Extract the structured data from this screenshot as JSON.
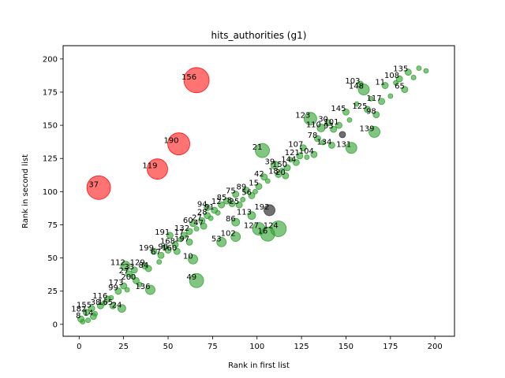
{
  "chart_data": {
    "type": "scatter",
    "title": "hits_authorities (g1)",
    "xlabel": "Rank in first list",
    "ylabel": "Rank in second list",
    "xlim": [
      -9,
      211
    ],
    "ylim": [
      -9,
      210
    ],
    "xticks": [
      0,
      25,
      50,
      75,
      100,
      125,
      150,
      175,
      200
    ],
    "yticks": [
      0,
      25,
      50,
      75,
      100,
      125,
      150,
      175,
      200
    ],
    "grid": false,
    "colors": {
      "match": "#2ca02c",
      "far": "#ff0000",
      "mid": "#333333"
    },
    "points": [
      {
        "label": "156",
        "x": 66,
        "y": 184,
        "size": 16,
        "category": "far"
      },
      {
        "label": "190",
        "x": 56,
        "y": 136,
        "size": 14,
        "category": "far"
      },
      {
        "label": "119",
        "x": 44,
        "y": 117,
        "size": 13,
        "category": "far"
      },
      {
        "label": "37",
        "x": 11,
        "y": 103,
        "size": 15,
        "category": "far"
      },
      {
        "label": "192",
        "x": 107,
        "y": 86,
        "size": 7,
        "category": "mid"
      },
      {
        "label": "",
        "x": 148,
        "y": 143,
        "size": 4,
        "category": "mid"
      },
      {
        "label": "148",
        "x": 160,
        "y": 177,
        "size": 7,
        "category": "match"
      },
      {
        "label": "123",
        "x": 130,
        "y": 155,
        "size": 8,
        "category": "match"
      },
      {
        "label": "139",
        "x": 166,
        "y": 145,
        "size": 7,
        "category": "match"
      },
      {
        "label": "21",
        "x": 103,
        "y": 131,
        "size": 9,
        "category": "match"
      },
      {
        "label": "131",
        "x": 153,
        "y": 133,
        "size": 7,
        "category": "match"
      },
      {
        "label": "127",
        "x": 101,
        "y": 72,
        "size": 8,
        "category": "match"
      },
      {
        "label": "124",
        "x": 112,
        "y": 72,
        "size": 10,
        "category": "match"
      },
      {
        "label": "16",
        "x": 106,
        "y": 68,
        "size": 9,
        "category": "match"
      },
      {
        "label": "102",
        "x": 88,
        "y": 66,
        "size": 6,
        "category": "match"
      },
      {
        "label": "53",
        "x": 80,
        "y": 62,
        "size": 6,
        "category": "match"
      },
      {
        "label": "113",
        "x": 97,
        "y": 82,
        "size": 5,
        "category": "match"
      },
      {
        "label": "86",
        "x": 88,
        "y": 77,
        "size": 5,
        "category": "match"
      },
      {
        "label": "49",
        "x": 66,
        "y": 33,
        "size": 9,
        "category": "match"
      },
      {
        "label": "10",
        "x": 64,
        "y": 49,
        "size": 6,
        "category": "match"
      },
      {
        "label": "112",
        "x": 26,
        "y": 44,
        "size": 6,
        "category": "match"
      },
      {
        "label": "136",
        "x": 40,
        "y": 26,
        "size": 6,
        "category": "match"
      },
      {
        "label": "24",
        "x": 24,
        "y": 12,
        "size": 5,
        "category": "match"
      },
      {
        "label": "39",
        "x": 110,
        "y": 120,
        "size": 5,
        "category": "match"
      },
      {
        "label": "110",
        "x": 136,
        "y": 148,
        "size": 5,
        "category": "match"
      },
      {
        "label": "107",
        "x": 126,
        "y": 133,
        "size": 4,
        "category": "match"
      },
      {
        "label": "103",
        "x": 158,
        "y": 181,
        "size": 4,
        "category": "match"
      },
      {
        "label": "11",
        "x": 172,
        "y": 180,
        "size": 4,
        "category": "match"
      },
      {
        "label": "108",
        "x": 180,
        "y": 185,
        "size": 4,
        "category": "match"
      },
      {
        "label": "135",
        "x": 185,
        "y": 190,
        "size": 4,
        "category": "match"
      },
      {
        "label": "65",
        "x": 183,
        "y": 177,
        "size": 4,
        "category": "match"
      },
      {
        "label": "117",
        "x": 170,
        "y": 168,
        "size": 4,
        "category": "match"
      },
      {
        "label": "125",
        "x": 162,
        "y": 162,
        "size": 4,
        "category": "match"
      },
      {
        "label": "98",
        "x": 167,
        "y": 158,
        "size": 4,
        "category": "match"
      },
      {
        "label": "145",
        "x": 150,
        "y": 160,
        "size": 4,
        "category": "match"
      },
      {
        "label": "30",
        "x": 140,
        "y": 152,
        "size": 4,
        "category": "match"
      },
      {
        "label": "101",
        "x": 146,
        "y": 150,
        "size": 4,
        "category": "match"
      },
      {
        "label": "93",
        "x": 143,
        "y": 147,
        "size": 4,
        "category": "match"
      },
      {
        "label": "78",
        "x": 134,
        "y": 140,
        "size": 4,
        "category": "match"
      },
      {
        "label": "134",
        "x": 142,
        "y": 135,
        "size": 4,
        "category": "match"
      },
      {
        "label": "121",
        "x": 124,
        "y": 127,
        "size": 4,
        "category": "match"
      },
      {
        "label": "144",
        "x": 122,
        "y": 122,
        "size": 4,
        "category": "match"
      },
      {
        "label": "104",
        "x": 132,
        "y": 128,
        "size": 4,
        "category": "match"
      },
      {
        "label": "150",
        "x": 117,
        "y": 118,
        "size": 4,
        "category": "match"
      },
      {
        "label": "42",
        "x": 104,
        "y": 111,
        "size": 4,
        "category": "match"
      },
      {
        "label": "18",
        "x": 112,
        "y": 113,
        "size": 4,
        "category": "match"
      },
      {
        "label": "20",
        "x": 116,
        "y": 112,
        "size": 4,
        "category": "match"
      },
      {
        "label": "89",
        "x": 94,
        "y": 101,
        "size": 4,
        "category": "match"
      },
      {
        "label": "15",
        "x": 101,
        "y": 104,
        "size": 4,
        "category": "match"
      },
      {
        "label": "75",
        "x": 88,
        "y": 98,
        "size": 4,
        "category": "match"
      },
      {
        "label": "56",
        "x": 97,
        "y": 97,
        "size": 4,
        "category": "match"
      },
      {
        "label": "85",
        "x": 83,
        "y": 93,
        "size": 4,
        "category": "match"
      },
      {
        "label": "12",
        "x": 80,
        "y": 90,
        "size": 4,
        "category": "match"
      },
      {
        "label": "8",
        "x": 86,
        "y": 91,
        "size": 4,
        "category": "match"
      },
      {
        "label": "25",
        "x": 90,
        "y": 90,
        "size": 4,
        "category": "match"
      },
      {
        "label": "94",
        "x": 72,
        "y": 88,
        "size": 4,
        "category": "match"
      },
      {
        "label": "91",
        "x": 76,
        "y": 86,
        "size": 4,
        "category": "match"
      },
      {
        "label": "28",
        "x": 72,
        "y": 82,
        "size": 4,
        "category": "match"
      },
      {
        "label": "27",
        "x": 69,
        "y": 78,
        "size": 4,
        "category": "match"
      },
      {
        "label": "60",
        "x": 64,
        "y": 76,
        "size": 4,
        "category": "match"
      },
      {
        "label": "47",
        "x": 70,
        "y": 74,
        "size": 4,
        "category": "match"
      },
      {
        "label": "132",
        "x": 62,
        "y": 70,
        "size": 4,
        "category": "match"
      },
      {
        "label": "191",
        "x": 51,
        "y": 67,
        "size": 4,
        "category": "match"
      },
      {
        "label": "17",
        "x": 59,
        "y": 67,
        "size": 4,
        "category": "match"
      },
      {
        "label": "197",
        "x": 62,
        "y": 62,
        "size": 4,
        "category": "match"
      },
      {
        "label": "199",
        "x": 42,
        "y": 55,
        "size": 4,
        "category": "match"
      },
      {
        "label": "90",
        "x": 50,
        "y": 56,
        "size": 4,
        "category": "match"
      },
      {
        "label": "168",
        "x": 54,
        "y": 60,
        "size": 4,
        "category": "match"
      },
      {
        "label": "160",
        "x": 55,
        "y": 55,
        "size": 4,
        "category": "match"
      },
      {
        "label": "67",
        "x": 46,
        "y": 52,
        "size": 4,
        "category": "match"
      },
      {
        "label": "129",
        "x": 37,
        "y": 44,
        "size": 4,
        "category": "match"
      },
      {
        "label": "84",
        "x": 39,
        "y": 42,
        "size": 4,
        "category": "match"
      },
      {
        "label": "33",
        "x": 31,
        "y": 41,
        "size": 4,
        "category": "match"
      },
      {
        "label": "27",
        "x": 28,
        "y": 38,
        "size": 4,
        "category": "match"
      },
      {
        "label": "200",
        "x": 32,
        "y": 33,
        "size": 4,
        "category": "match"
      },
      {
        "label": "99",
        "x": 22,
        "y": 25,
        "size": 4,
        "category": "match"
      },
      {
        "label": "116",
        "x": 16,
        "y": 19,
        "size": 4,
        "category": "match"
      },
      {
        "label": "165",
        "x": 19,
        "y": 14,
        "size": 4,
        "category": "match"
      },
      {
        "label": "155",
        "x": 7,
        "y": 12,
        "size": 4,
        "category": "match"
      },
      {
        "label": "182",
        "x": 4,
        "y": 9,
        "size": 4,
        "category": "match"
      },
      {
        "label": "8",
        "x": 1,
        "y": 4,
        "size": 4,
        "category": "match"
      },
      {
        "label": "14",
        "x": 8,
        "y": 6,
        "size": 4,
        "category": "match"
      },
      {
        "label": "38",
        "x": 12,
        "y": 14,
        "size": 4,
        "category": "match"
      },
      {
        "label": "173",
        "x": 25,
        "y": 29,
        "size": 4,
        "category": "match"
      },
      {
        "label": "",
        "x": 2,
        "y": 2,
        "size": 3,
        "category": "match"
      },
      {
        "label": "",
        "x": 5,
        "y": 3,
        "size": 3,
        "category": "match"
      },
      {
        "label": "",
        "x": 9,
        "y": 8,
        "size": 3,
        "category": "match"
      },
      {
        "label": "",
        "x": 14,
        "y": 16,
        "size": 3,
        "category": "match"
      },
      {
        "label": "",
        "x": 18,
        "y": 20,
        "size": 3,
        "category": "match"
      },
      {
        "label": "",
        "x": 27,
        "y": 26,
        "size": 3,
        "category": "match"
      },
      {
        "label": "",
        "x": 30,
        "y": 36,
        "size": 3,
        "category": "match"
      },
      {
        "label": "",
        "x": 34,
        "y": 30,
        "size": 3,
        "category": "match"
      },
      {
        "label": "",
        "x": 45,
        "y": 47,
        "size": 3,
        "category": "match"
      },
      {
        "label": "",
        "x": 48,
        "y": 58,
        "size": 3,
        "category": "match"
      },
      {
        "label": "",
        "x": 57,
        "y": 64,
        "size": 3,
        "category": "match"
      },
      {
        "label": "",
        "x": 66,
        "y": 72,
        "size": 3,
        "category": "match"
      },
      {
        "label": "",
        "x": 74,
        "y": 80,
        "size": 3,
        "category": "match"
      },
      {
        "label": "",
        "x": 78,
        "y": 84,
        "size": 3,
        "category": "match"
      },
      {
        "label": "",
        "x": 92,
        "y": 94,
        "size": 3,
        "category": "match"
      },
      {
        "label": "",
        "x": 99,
        "y": 100,
        "size": 3,
        "category": "match"
      },
      {
        "label": "",
        "x": 106,
        "y": 108,
        "size": 3,
        "category": "match"
      },
      {
        "label": "",
        "x": 114,
        "y": 116,
        "size": 3,
        "category": "match"
      },
      {
        "label": "",
        "x": 119,
        "y": 124,
        "size": 3,
        "category": "match"
      },
      {
        "label": "",
        "x": 128,
        "y": 126,
        "size": 3,
        "category": "match"
      },
      {
        "label": "",
        "x": 137,
        "y": 137,
        "size": 3,
        "category": "match"
      },
      {
        "label": "",
        "x": 152,
        "y": 154,
        "size": 3,
        "category": "match"
      },
      {
        "label": "",
        "x": 156,
        "y": 166,
        "size": 3,
        "category": "match"
      },
      {
        "label": "",
        "x": 164,
        "y": 170,
        "size": 3,
        "category": "match"
      },
      {
        "label": "",
        "x": 175,
        "y": 172,
        "size": 3,
        "category": "match"
      },
      {
        "label": "",
        "x": 178,
        "y": 182,
        "size": 3,
        "category": "match"
      },
      {
        "label": "",
        "x": 188,
        "y": 186,
        "size": 3,
        "category": "match"
      },
      {
        "label": "",
        "x": 191,
        "y": 193,
        "size": 3,
        "category": "match"
      },
      {
        "label": "",
        "x": 195,
        "y": 191,
        "size": 3,
        "category": "match"
      }
    ]
  }
}
